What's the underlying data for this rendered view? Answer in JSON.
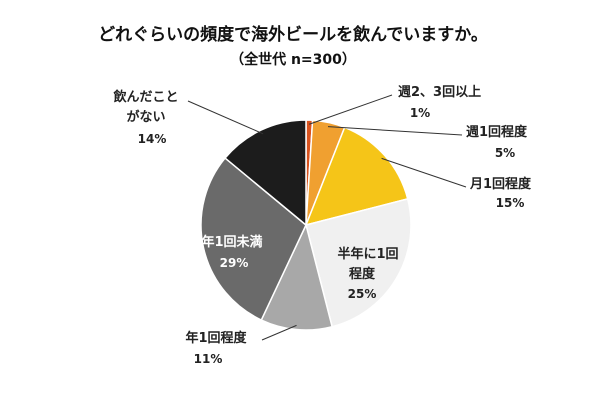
{
  "chart_data": {
    "type": "pie",
    "title": "どれぐらいの頻度で海外ビールを飲んでいますか。",
    "subtitle": "（全世代 n=300）",
    "unit": "%",
    "slices": [
      {
        "label": "週2、3回以上",
        "value": 1,
        "value_label": "1%",
        "color": "#d9531e"
      },
      {
        "label": "週1回程度",
        "value": 5,
        "value_label": "5%",
        "color": "#f0a030"
      },
      {
        "label": "月1回程度",
        "value": 15,
        "value_label": "15%",
        "color": "#f5c518"
      },
      {
        "label": "半年に1回程度",
        "value": 25,
        "value_label": "25%",
        "color": "#f0f0f0"
      },
      {
        "label": "年1回程度",
        "value": 11,
        "value_label": "11%",
        "color": "#a8a8a8"
      },
      {
        "label": "年1回未満",
        "value": 29,
        "value_label": "29%",
        "color": "#6a6a6a"
      },
      {
        "label": "飲んだことがない",
        "value": 14,
        "value_label": "14%",
        "color": "#1c1c1c"
      }
    ]
  }
}
